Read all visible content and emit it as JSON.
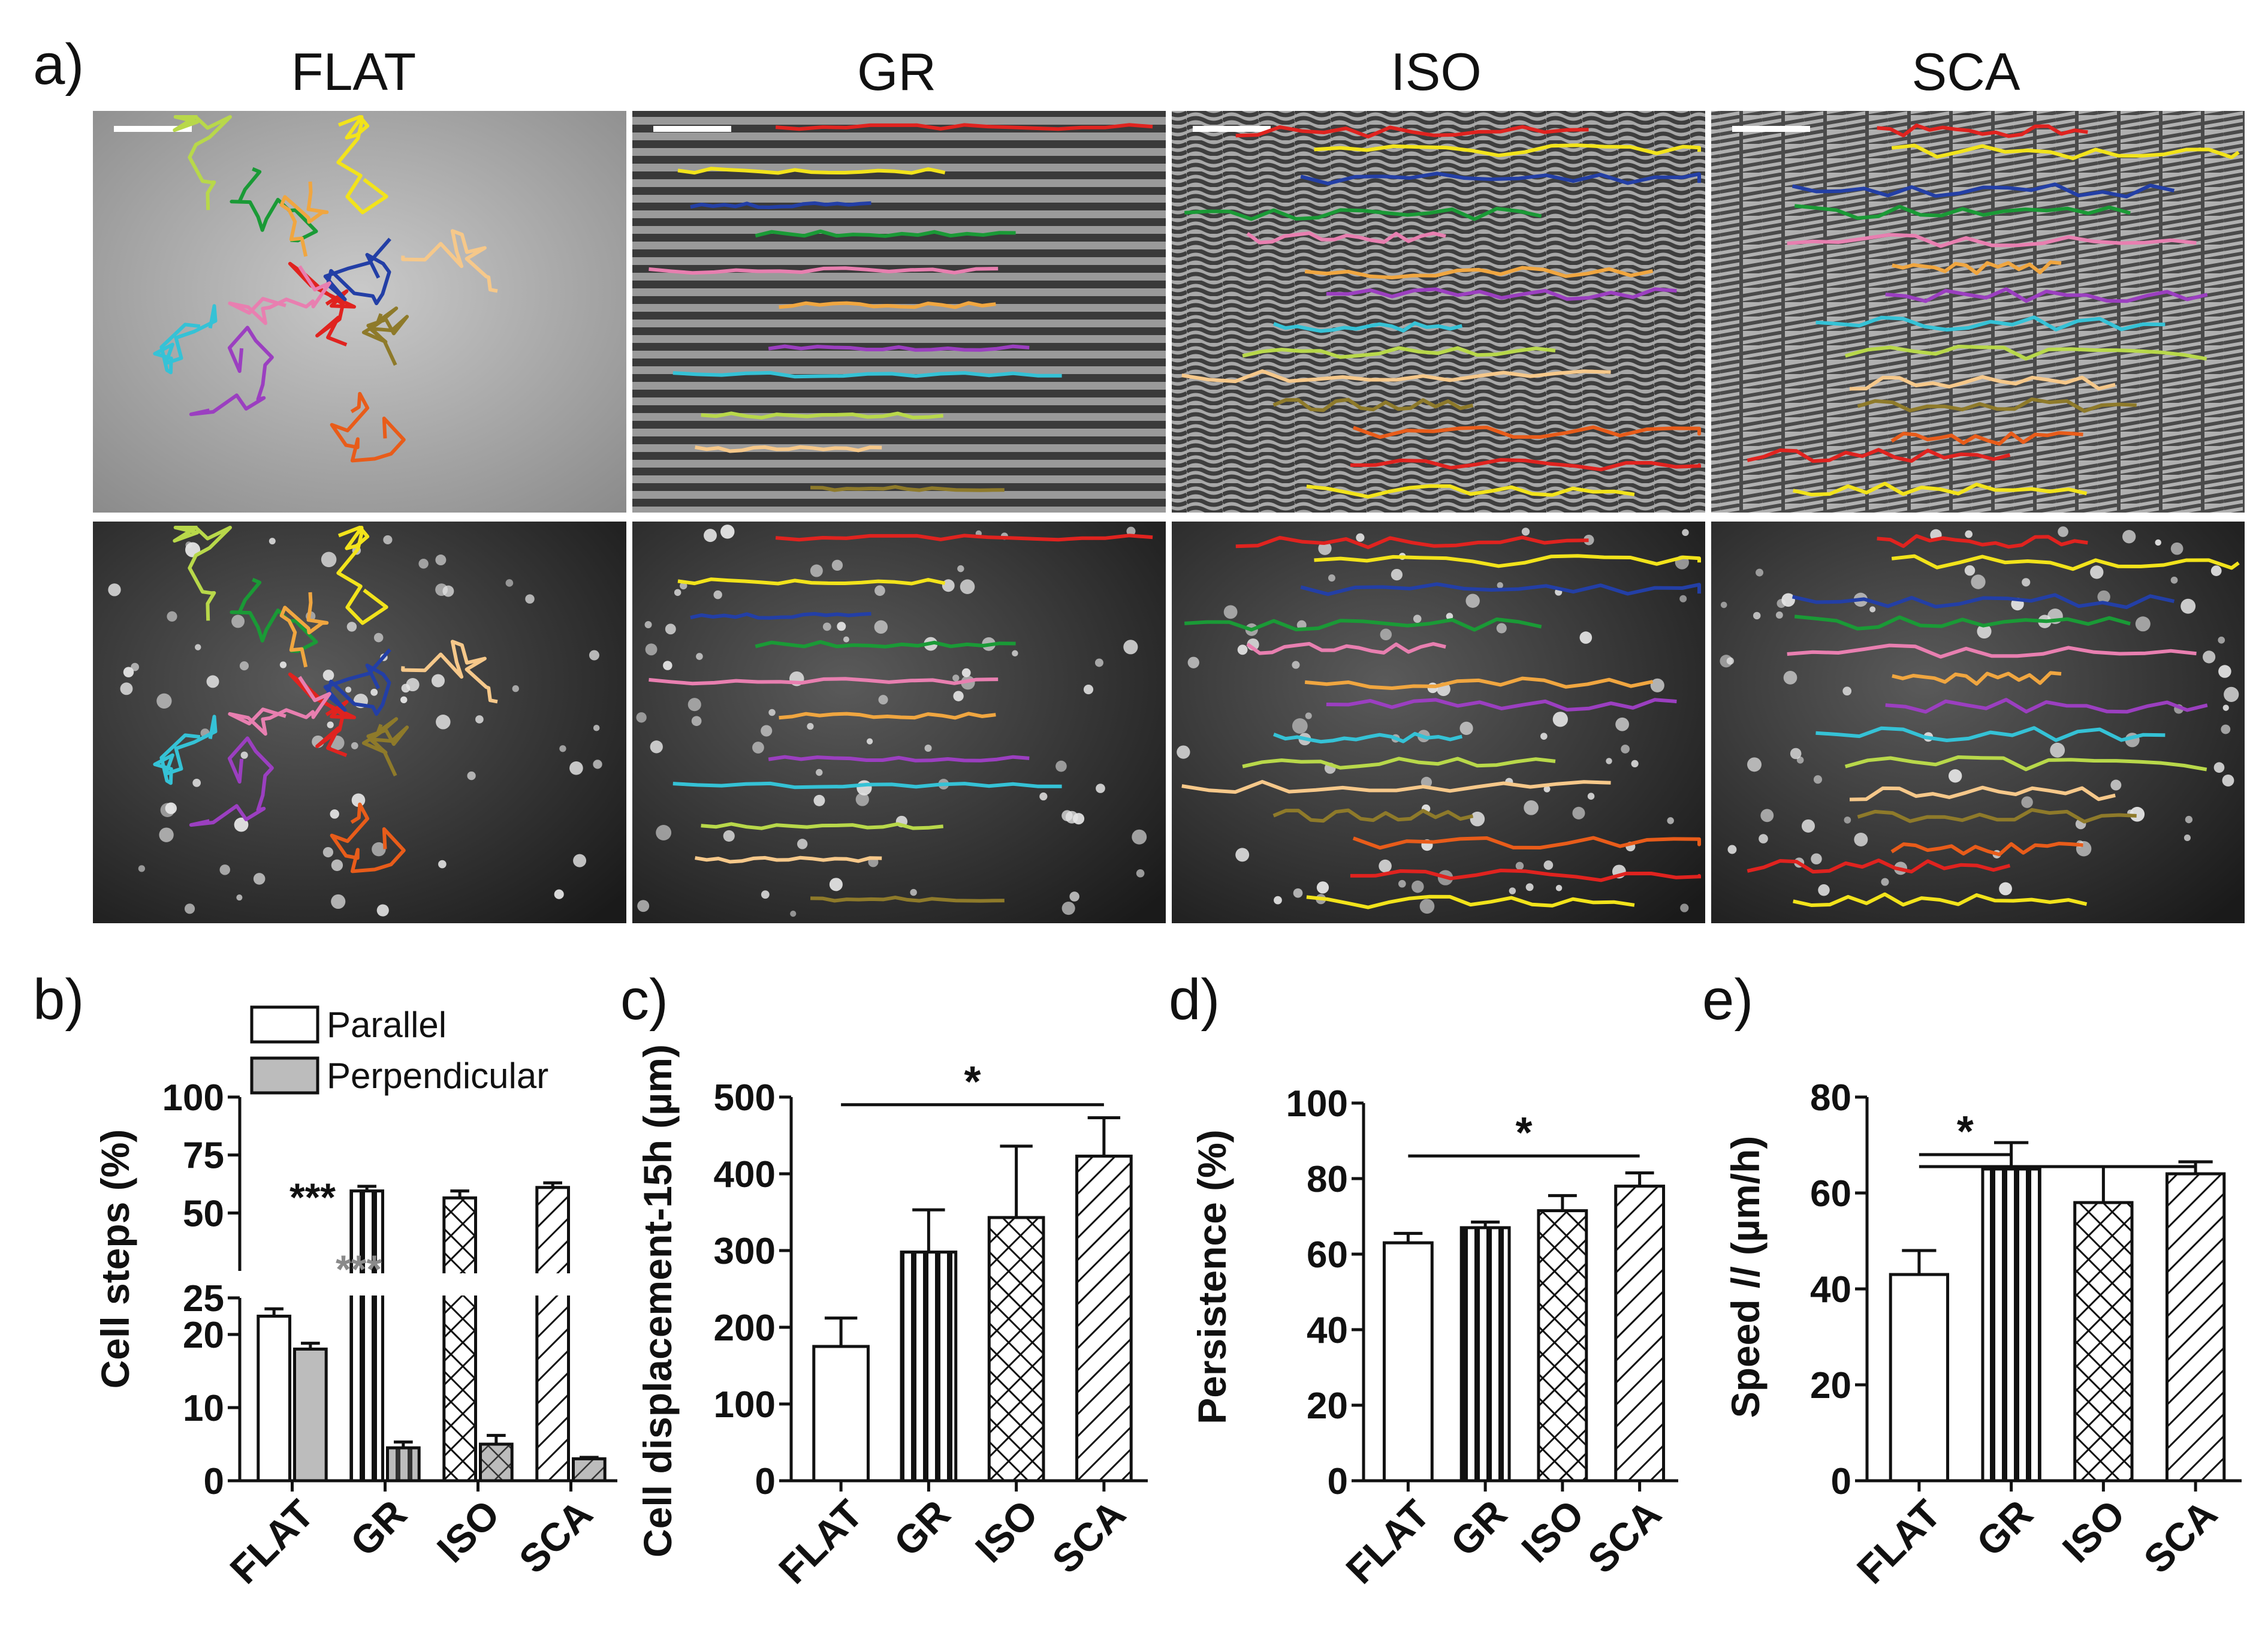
{
  "panel_a": {
    "label": "a)",
    "columns": [
      "FLAT",
      "GR",
      "ISO",
      "SCA"
    ],
    "track_colors": [
      "#e0231f",
      "#f2e31b",
      "#233fa6",
      "#1a9a36",
      "#e87fb0",
      "#f0a640",
      "#9b3fc0",
      "#35c2d6",
      "#b8d84a",
      "#f6c88a",
      "#8e7a2a",
      "#e85c1a"
    ]
  },
  "chart_data": [
    {
      "id": "b",
      "panel_label": "b)",
      "type": "bar",
      "ylabel": "Cell steps (%)",
      "categories": [
        "FLAT",
        "GR",
        "ISO",
        "SCA"
      ],
      "broken_axis": true,
      "ylim_lower": [
        0,
        25
      ],
      "ylim_upper": [
        25,
        100
      ],
      "yticks": [
        0,
        10,
        20,
        25,
        50,
        75,
        100
      ],
      "series": [
        {
          "name": "Parallel",
          "values": [
            22.5,
            59.5,
            56.5,
            61
          ],
          "errors": [
            1,
            2,
            3,
            2
          ],
          "patterns": [
            "none",
            "vertical",
            "crosshatch",
            "diagonal"
          ]
        },
        {
          "name": "Perpendicular",
          "values": [
            18,
            4.5,
            5,
            3
          ],
          "errors": [
            0.8,
            0.8,
            1.2,
            0.2
          ],
          "patterns": [
            "gray",
            "gray-vertical",
            "gray-crosshatch",
            "gray-diagonal"
          ]
        }
      ],
      "legend": [
        "Parallel",
        "Perpendicular"
      ],
      "annotations": [
        "***",
        "***"
      ]
    },
    {
      "id": "c",
      "panel_label": "c)",
      "type": "bar",
      "ylabel": "Cell displacement-15h (µm)",
      "categories": [
        "FLAT",
        "GR",
        "ISO",
        "SCA"
      ],
      "ylim": [
        0,
        500
      ],
      "yticks": [
        0,
        100,
        200,
        300,
        400,
        500
      ],
      "values": [
        175,
        298,
        343,
        423
      ],
      "errors": [
        37,
        55,
        93,
        50
      ],
      "patterns": [
        "none",
        "vertical",
        "crosshatch",
        "diagonal"
      ],
      "significance": {
        "label": "*",
        "from": "FLAT",
        "to": [
          "SCA"
        ],
        "level": 490
      }
    },
    {
      "id": "d",
      "panel_label": "d)",
      "type": "bar",
      "ylabel": "Persistence (%)",
      "categories": [
        "FLAT",
        "GR",
        "ISO",
        "SCA"
      ],
      "ylim": [
        0,
        100
      ],
      "yticks": [
        0,
        20,
        40,
        60,
        80,
        100
      ],
      "values": [
        63,
        67,
        71.5,
        78
      ],
      "errors": [
        2.5,
        1.5,
        4,
        3.5
      ],
      "patterns": [
        "none",
        "vertical",
        "crosshatch",
        "diagonal"
      ],
      "significance": {
        "label": "*",
        "from": "FLAT",
        "to": [
          "SCA"
        ],
        "level": 86
      }
    },
    {
      "id": "e",
      "panel_label": "e)",
      "type": "bar",
      "ylabel": "Speed // (µm/h)",
      "categories": [
        "FLAT",
        "GR",
        "ISO",
        "SCA"
      ],
      "ylim": [
        0,
        80
      ],
      "yticks": [
        0,
        20,
        40,
        60,
        80
      ],
      "values": [
        43,
        65,
        58,
        64
      ],
      "errors": [
        5,
        5.5,
        7.5,
        2.5
      ],
      "patterns": [
        "none",
        "vertical",
        "crosshatch",
        "diagonal"
      ],
      "significance": {
        "label": "*",
        "from": "FLAT",
        "to": [
          "GR",
          "SCA"
        ],
        "level": 68
      }
    }
  ]
}
